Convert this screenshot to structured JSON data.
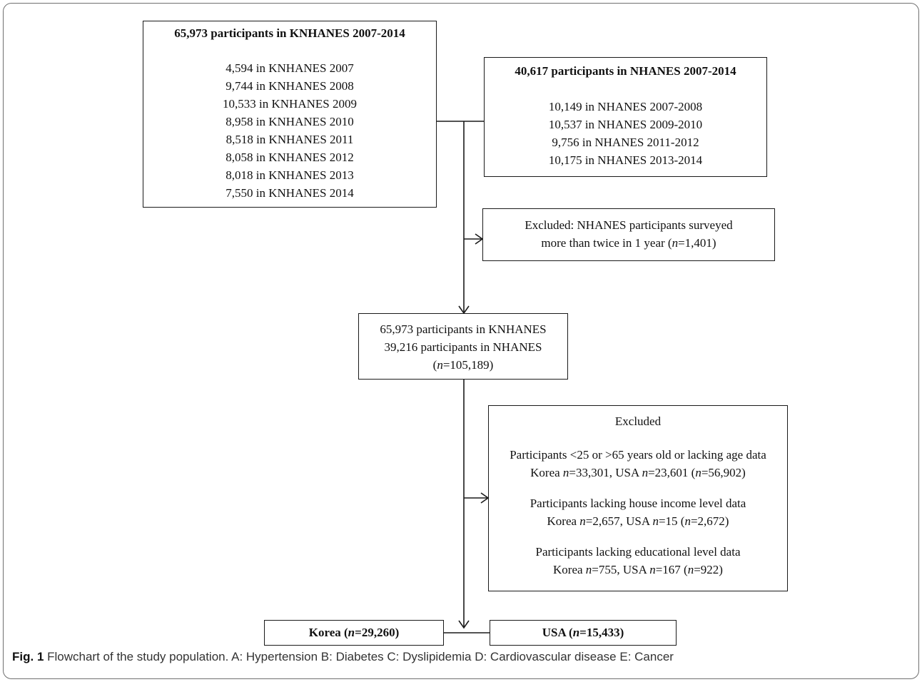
{
  "knhanes_box": {
    "title": "65,973 participants in KNHANES 2007-2014",
    "lines": [
      "4,594 in KNHANES 2007",
      "9,744 in KNHANES 2008",
      "10,533 in KNHANES 2009",
      "8,958 in KNHANES 2010",
      "8,518 in KNHANES 2011",
      "8,058 in KNHANES 2012",
      "8,018 in KNHANES 2013",
      "7,550 in KNHANES 2014"
    ]
  },
  "nhanes_box": {
    "title": "40,617 participants in NHANES 2007-2014",
    "lines": [
      "10,149 in NHANES 2007-2008",
      "10,537 in NHANES 2009-2010",
      "9,756 in NHANES 2011-2012",
      "10,175 in NHANES 2013-2014"
    ]
  },
  "excluded_1": {
    "line1": "Excluded: NHANES participants surveyed",
    "line2_prefix": "more than twice in 1 year (",
    "n_symbol": "n",
    "line2_value": "=1,401)"
  },
  "merged_box": {
    "line1": "65,973 participants in KNHANES",
    "line2": "39,216 participants in NHANES",
    "line3_prefix": "(",
    "n_symbol": "n",
    "line3_value": "=105,189)"
  },
  "excluded_2": {
    "title": "Excluded",
    "groups": [
      {
        "label": "Participants <25 or >65 years old or lacking age data",
        "korea_prefix": "Korea ",
        "korea_value": "=33,301, USA ",
        "usa_value": "=23,601 (",
        "total_value": "=56,902)"
      },
      {
        "label": "Participants lacking house income level data",
        "korea_prefix": "Korea ",
        "korea_value": "=2,657, USA ",
        "usa_value": "=15 (",
        "total_value": "=2,672)"
      },
      {
        "label": "Participants lacking educational level data",
        "korea_prefix": "Korea ",
        "korea_value": "=755, USA ",
        "usa_value": "=167 (",
        "total_value": "=922)"
      }
    ],
    "n_symbol": "n"
  },
  "korea_box": {
    "prefix": "Korea (",
    "n_symbol": "n",
    "value": "=29,260)"
  },
  "usa_box": {
    "prefix": "USA (",
    "n_symbol": "n",
    "value": "=15,433)"
  },
  "caption": {
    "label": "Fig. 1",
    "text": " Flowchart of the study population. A: Hypertension B: Diabetes C: Dyslipidemia D: Cardiovascular disease E: Cancer"
  }
}
